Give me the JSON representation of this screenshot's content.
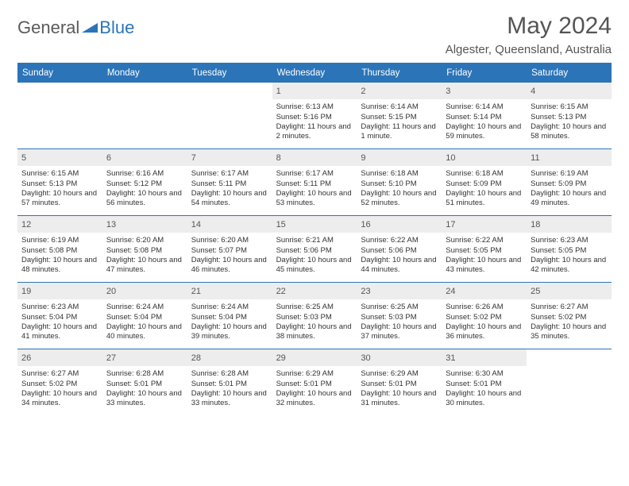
{
  "logo": {
    "general": "General",
    "blue": "Blue"
  },
  "title": "May 2024",
  "location": "Algester, Queensland, Australia",
  "colors": {
    "header_bg": "#2b74b8",
    "header_text": "#ffffff",
    "daynum_bg": "#ededed",
    "text": "#333333"
  },
  "weekdays": [
    "Sunday",
    "Monday",
    "Tuesday",
    "Wednesday",
    "Thursday",
    "Friday",
    "Saturday"
  ],
  "leading_blanks": 3,
  "days": [
    {
      "n": "1",
      "sunrise": "Sunrise: 6:13 AM",
      "sunset": "Sunset: 5:16 PM",
      "daylight": "Daylight: 11 hours and 2 minutes."
    },
    {
      "n": "2",
      "sunrise": "Sunrise: 6:14 AM",
      "sunset": "Sunset: 5:15 PM",
      "daylight": "Daylight: 11 hours and 1 minute."
    },
    {
      "n": "3",
      "sunrise": "Sunrise: 6:14 AM",
      "sunset": "Sunset: 5:14 PM",
      "daylight": "Daylight: 10 hours and 59 minutes."
    },
    {
      "n": "4",
      "sunrise": "Sunrise: 6:15 AM",
      "sunset": "Sunset: 5:13 PM",
      "daylight": "Daylight: 10 hours and 58 minutes."
    },
    {
      "n": "5",
      "sunrise": "Sunrise: 6:15 AM",
      "sunset": "Sunset: 5:13 PM",
      "daylight": "Daylight: 10 hours and 57 minutes."
    },
    {
      "n": "6",
      "sunrise": "Sunrise: 6:16 AM",
      "sunset": "Sunset: 5:12 PM",
      "daylight": "Daylight: 10 hours and 56 minutes."
    },
    {
      "n": "7",
      "sunrise": "Sunrise: 6:17 AM",
      "sunset": "Sunset: 5:11 PM",
      "daylight": "Daylight: 10 hours and 54 minutes."
    },
    {
      "n": "8",
      "sunrise": "Sunrise: 6:17 AM",
      "sunset": "Sunset: 5:11 PM",
      "daylight": "Daylight: 10 hours and 53 minutes."
    },
    {
      "n": "9",
      "sunrise": "Sunrise: 6:18 AM",
      "sunset": "Sunset: 5:10 PM",
      "daylight": "Daylight: 10 hours and 52 minutes."
    },
    {
      "n": "10",
      "sunrise": "Sunrise: 6:18 AM",
      "sunset": "Sunset: 5:09 PM",
      "daylight": "Daylight: 10 hours and 51 minutes."
    },
    {
      "n": "11",
      "sunrise": "Sunrise: 6:19 AM",
      "sunset": "Sunset: 5:09 PM",
      "daylight": "Daylight: 10 hours and 49 minutes."
    },
    {
      "n": "12",
      "sunrise": "Sunrise: 6:19 AM",
      "sunset": "Sunset: 5:08 PM",
      "daylight": "Daylight: 10 hours and 48 minutes."
    },
    {
      "n": "13",
      "sunrise": "Sunrise: 6:20 AM",
      "sunset": "Sunset: 5:08 PM",
      "daylight": "Daylight: 10 hours and 47 minutes."
    },
    {
      "n": "14",
      "sunrise": "Sunrise: 6:20 AM",
      "sunset": "Sunset: 5:07 PM",
      "daylight": "Daylight: 10 hours and 46 minutes."
    },
    {
      "n": "15",
      "sunrise": "Sunrise: 6:21 AM",
      "sunset": "Sunset: 5:06 PM",
      "daylight": "Daylight: 10 hours and 45 minutes."
    },
    {
      "n": "16",
      "sunrise": "Sunrise: 6:22 AM",
      "sunset": "Sunset: 5:06 PM",
      "daylight": "Daylight: 10 hours and 44 minutes."
    },
    {
      "n": "17",
      "sunrise": "Sunrise: 6:22 AM",
      "sunset": "Sunset: 5:05 PM",
      "daylight": "Daylight: 10 hours and 43 minutes."
    },
    {
      "n": "18",
      "sunrise": "Sunrise: 6:23 AM",
      "sunset": "Sunset: 5:05 PM",
      "daylight": "Daylight: 10 hours and 42 minutes."
    },
    {
      "n": "19",
      "sunrise": "Sunrise: 6:23 AM",
      "sunset": "Sunset: 5:04 PM",
      "daylight": "Daylight: 10 hours and 41 minutes."
    },
    {
      "n": "20",
      "sunrise": "Sunrise: 6:24 AM",
      "sunset": "Sunset: 5:04 PM",
      "daylight": "Daylight: 10 hours and 40 minutes."
    },
    {
      "n": "21",
      "sunrise": "Sunrise: 6:24 AM",
      "sunset": "Sunset: 5:04 PM",
      "daylight": "Daylight: 10 hours and 39 minutes."
    },
    {
      "n": "22",
      "sunrise": "Sunrise: 6:25 AM",
      "sunset": "Sunset: 5:03 PM",
      "daylight": "Daylight: 10 hours and 38 minutes."
    },
    {
      "n": "23",
      "sunrise": "Sunrise: 6:25 AM",
      "sunset": "Sunset: 5:03 PM",
      "daylight": "Daylight: 10 hours and 37 minutes."
    },
    {
      "n": "24",
      "sunrise": "Sunrise: 6:26 AM",
      "sunset": "Sunset: 5:02 PM",
      "daylight": "Daylight: 10 hours and 36 minutes."
    },
    {
      "n": "25",
      "sunrise": "Sunrise: 6:27 AM",
      "sunset": "Sunset: 5:02 PM",
      "daylight": "Daylight: 10 hours and 35 minutes."
    },
    {
      "n": "26",
      "sunrise": "Sunrise: 6:27 AM",
      "sunset": "Sunset: 5:02 PM",
      "daylight": "Daylight: 10 hours and 34 minutes."
    },
    {
      "n": "27",
      "sunrise": "Sunrise: 6:28 AM",
      "sunset": "Sunset: 5:01 PM",
      "daylight": "Daylight: 10 hours and 33 minutes."
    },
    {
      "n": "28",
      "sunrise": "Sunrise: 6:28 AM",
      "sunset": "Sunset: 5:01 PM",
      "daylight": "Daylight: 10 hours and 33 minutes."
    },
    {
      "n": "29",
      "sunrise": "Sunrise: 6:29 AM",
      "sunset": "Sunset: 5:01 PM",
      "daylight": "Daylight: 10 hours and 32 minutes."
    },
    {
      "n": "30",
      "sunrise": "Sunrise: 6:29 AM",
      "sunset": "Sunset: 5:01 PM",
      "daylight": "Daylight: 10 hours and 31 minutes."
    },
    {
      "n": "31",
      "sunrise": "Sunrise: 6:30 AM",
      "sunset": "Sunset: 5:01 PM",
      "daylight": "Daylight: 10 hours and 30 minutes."
    }
  ]
}
